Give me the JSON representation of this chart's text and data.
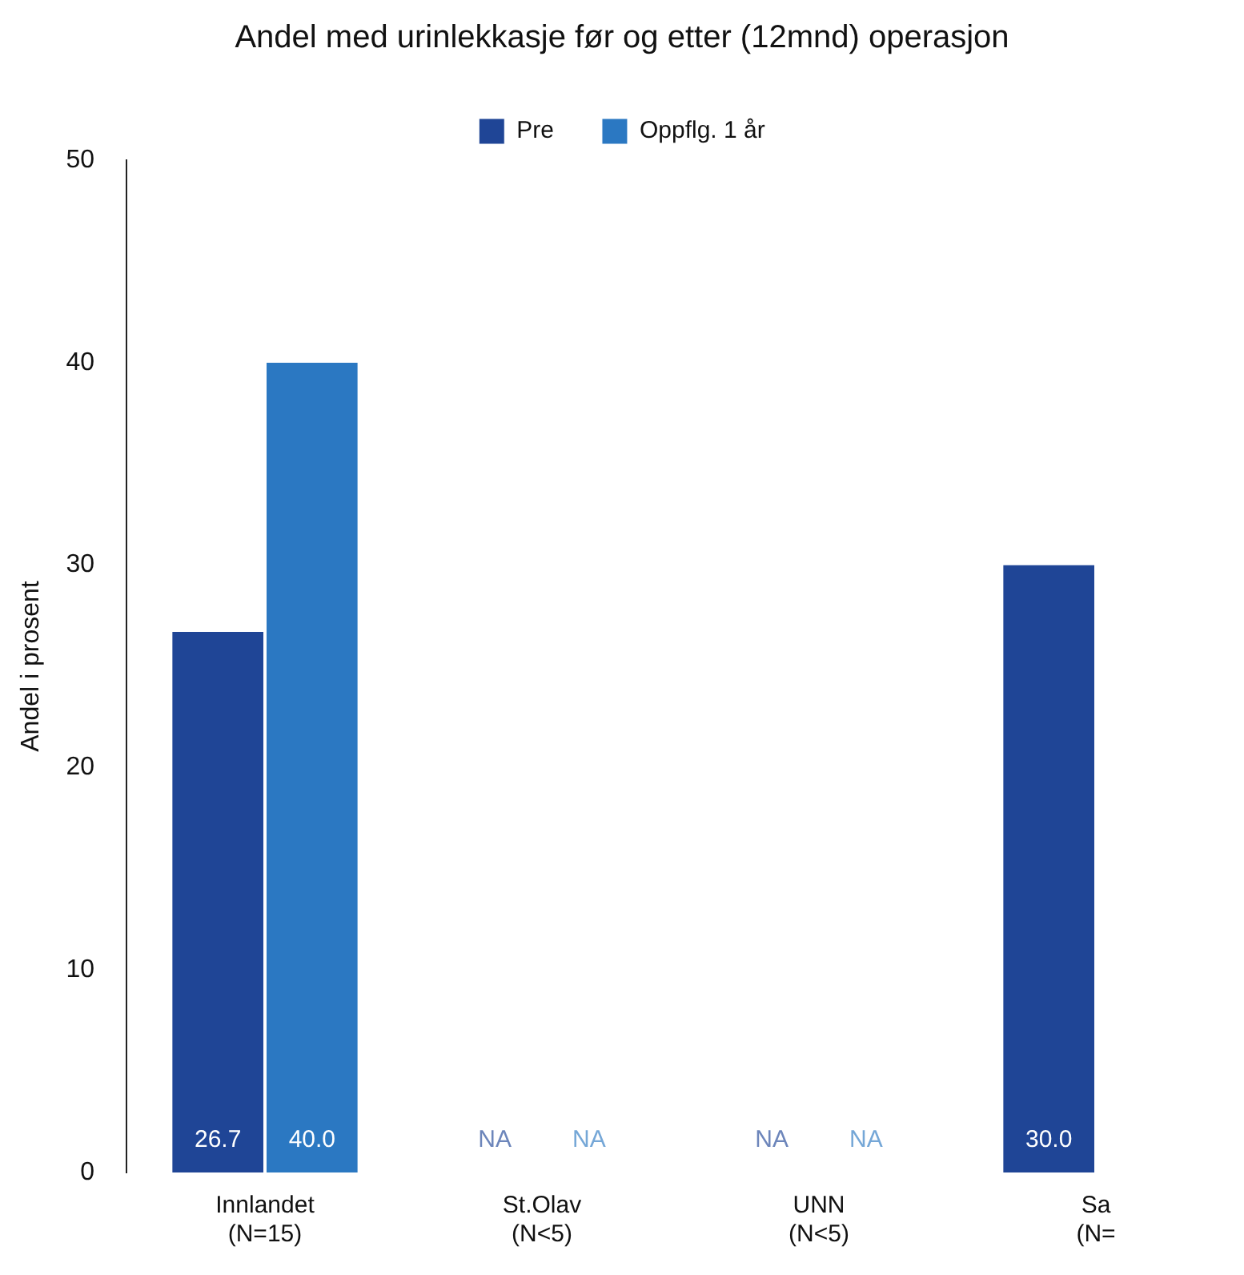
{
  "chart_data": {
    "type": "bar",
    "title": "Andel med urinlekkasje før og etter (12mnd) operasjon",
    "ylabel": "Andel i prosent",
    "categories": [
      "Innlandet\n(N=15)",
      "St.Olav\n(N<5)",
      "UNN\n(N<5)",
      "Sa\n(N="
    ],
    "series": [
      {
        "name": "Pre",
        "color": "#1f4596",
        "values": [
          26.7,
          null,
          null,
          30.0
        ],
        "value_labels": [
          "26.7",
          "NA",
          "NA",
          "30.0"
        ]
      },
      {
        "name": "Oppflg. 1 år",
        "color": "#2b78c2",
        "values": [
          40.0,
          null,
          null,
          null
        ],
        "value_labels": [
          "40.0",
          "NA",
          "NA",
          null
        ]
      }
    ],
    "ylim": [
      0,
      50
    ],
    "yticks": [
      0,
      10,
      20,
      30,
      40,
      50
    ],
    "grid": false,
    "legend": "top"
  }
}
